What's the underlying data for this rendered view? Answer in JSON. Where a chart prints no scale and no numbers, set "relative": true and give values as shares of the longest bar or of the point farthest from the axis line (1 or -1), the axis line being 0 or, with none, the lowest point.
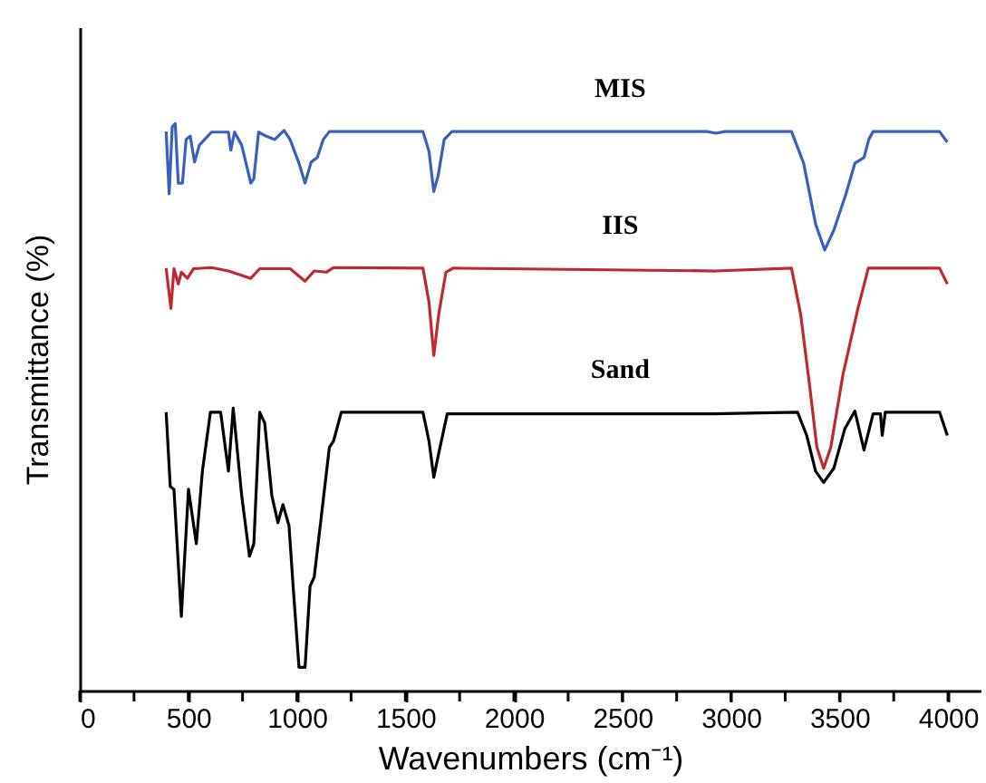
{
  "chart_data": {
    "type": "line",
    "xlabel": "Wavenumbers (cm⁻¹)",
    "ylabel": "Transmittance (%)",
    "relative": true,
    "xlim": [
      0,
      4150
    ],
    "xticks": [
      0,
      {
        "value": 250,
        "label": null
      },
      500,
      {
        "value": 750,
        "label": null
      },
      1000,
      {
        "value": 1250,
        "label": null
      },
      1500,
      {
        "value": 1750,
        "label": null
      },
      2000,
      {
        "value": 2250,
        "label": null
      },
      2500,
      {
        "value": 2750,
        "label": null
      },
      3000,
      {
        "value": 3250,
        "label": null
      },
      3500,
      {
        "value": 3750,
        "label": null
      },
      4000
    ],
    "series": [
      {
        "name": "MIS",
        "color": "#3a5fbf",
        "x": [
          398,
          412,
          426,
          440,
          454,
          473,
          490,
          509,
          529,
          551,
          607,
          685,
          696,
          713,
          746,
          788,
          802,
          824,
          857,
          899,
          941,
          969,
          1010,
          1038,
          1066,
          1094,
          1122,
          1150,
          1191,
          1581,
          1609,
          1631,
          1651,
          1679,
          1715,
          2889,
          2931,
          2973,
          3279,
          3335,
          3390,
          3432,
          3474,
          3530,
          3571,
          3613,
          3635,
          3655,
          3961,
          3997
        ],
        "values": [
          0.986,
          0.876,
          0.994,
          1,
          0.895,
          0.895,
          0.972,
          0.978,
          0.932,
          0.962,
          0.985,
          0.985,
          0.953,
          0.985,
          0.962,
          0.895,
          0.903,
          0.985,
          0.978,
          0.972,
          0.988,
          0.972,
          0.93,
          0.895,
          0.932,
          0.94,
          0.972,
          0.986,
          0.986,
          0.986,
          0.951,
          0.88,
          0.908,
          0.972,
          0.986,
          0.986,
          0.983,
          0.986,
          0.986,
          0.93,
          0.823,
          0.777,
          0.812,
          0.876,
          0.93,
          0.94,
          0.972,
          0.986,
          0.986,
          0.967
        ]
      },
      {
        "name": "IIS",
        "color": "#c0282d",
        "x": [
          398,
          420,
          434,
          454,
          468,
          496,
          524,
          607,
          685,
          788,
          829,
          969,
          1038,
          1080,
          1136,
          1169,
          1581,
          1609,
          1631,
          1654,
          1687,
          1720,
          2931,
          3279,
          3321,
          3363,
          3396,
          3427,
          3460,
          3516,
          3585,
          3633,
          3961,
          3997
        ],
        "values": [
          0.745,
          0.674,
          0.744,
          0.717,
          0.738,
          0.727,
          0.744,
          0.746,
          0.74,
          0.727,
          0.744,
          0.744,
          0.722,
          0.74,
          0.738,
          0.746,
          0.745,
          0.685,
          0.591,
          0.664,
          0.738,
          0.745,
          0.74,
          0.745,
          0.664,
          0.536,
          0.429,
          0.392,
          0.429,
          0.557,
          0.674,
          0.745,
          0.745,
          0.717
        ]
      },
      {
        "name": "Sand",
        "color": "#000000",
        "x": [
          398,
          417,
          434,
          468,
          501,
          537,
          565,
          602,
          649,
          685,
          707,
          746,
          782,
          802,
          829,
          852,
          885,
          913,
          936,
          964,
          983,
          1010,
          1038,
          1061,
          1080,
          1108,
          1150,
          1169,
          1205,
          1581,
          1609,
          1631,
          1654,
          1693,
          2917,
          3307,
          3349,
          3390,
          3427,
          3474,
          3524,
          3571,
          3613,
          3655,
          3689,
          3697,
          3711,
          3961,
          3997
        ],
        "values": [
          0.491,
          0.36,
          0.355,
          0.131,
          0.355,
          0.259,
          0.387,
          0.491,
          0.491,
          0.387,
          0.498,
          0.344,
          0.237,
          0.259,
          0.491,
          0.472,
          0.344,
          0.296,
          0.328,
          0.291,
          0.184,
          0.041,
          0.041,
          0.184,
          0.2,
          0.291,
          0.429,
          0.44,
          0.491,
          0.491,
          0.44,
          0.376,
          0.419,
          0.488,
          0.488,
          0.491,
          0.45,
          0.387,
          0.367,
          0.392,
          0.461,
          0.493,
          0.424,
          0.488,
          0.488,
          0.45,
          0.491,
          0.491,
          0.45
        ]
      }
    ]
  }
}
